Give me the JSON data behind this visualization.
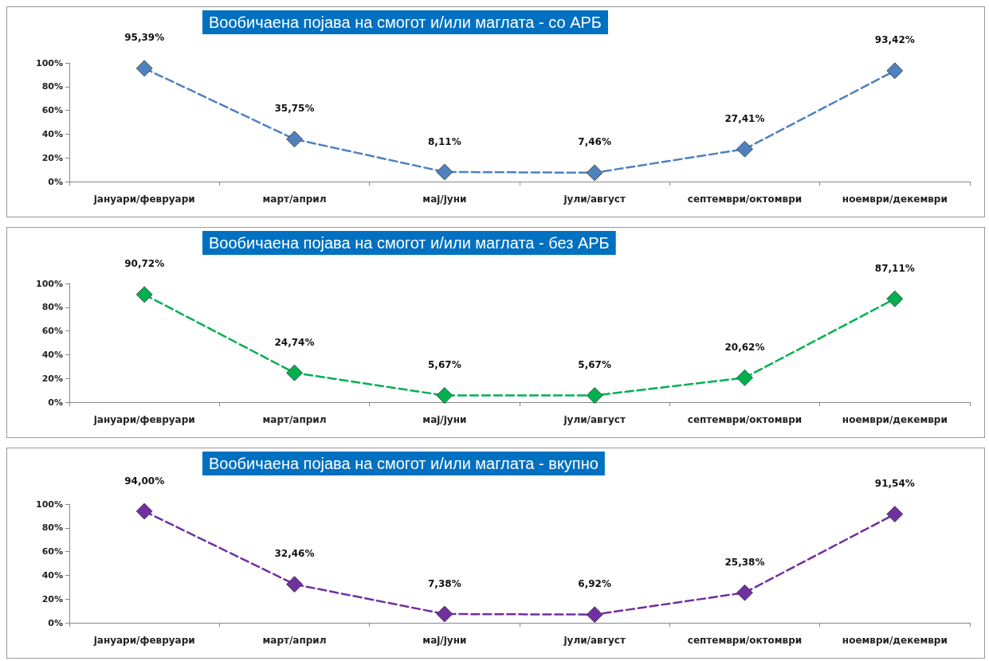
{
  "chart_data": [
    {
      "type": "line",
      "title": "Вообичаена појава на смогот и/или маглата - со АРБ",
      "categories": [
        "јануари/февруари",
        "март/април",
        "мај/јуни",
        "јули/август",
        "септември/октомври",
        "ноември/декември"
      ],
      "series": [
        {
          "color": "#4f81bd",
          "values": [
            95.39,
            35.75,
            8.11,
            7.46,
            27.41,
            93.42
          ],
          "value_labels": [
            "95,39%",
            "35,75%",
            "8,11%",
            "7,46%",
            "27,41%",
            "93,42%"
          ]
        }
      ],
      "ylim": [
        0,
        100
      ],
      "yticks": [
        {
          "value": 0,
          "label": "0%"
        },
        {
          "value": 20,
          "label": "20%"
        },
        {
          "value": 40,
          "label": "40%"
        },
        {
          "value": 60,
          "label": "60%"
        },
        {
          "value": 80,
          "label": "80%"
        },
        {
          "value": 100,
          "label": "100%"
        }
      ],
      "grid": false,
      "marker": "diamond",
      "line_style": "dashed"
    },
    {
      "type": "line",
      "title": "Вообичаена појава на смогот и/или маглата - без АРБ",
      "categories": [
        "јануари/февруари",
        "март/април",
        "мај/јуни",
        "јули/август",
        "септември/октомври",
        "ноември/декември"
      ],
      "series": [
        {
          "color": "#00b050",
          "values": [
            90.72,
            24.74,
            5.67,
            5.67,
            20.62,
            87.11
          ],
          "value_labels": [
            "90,72%",
            "24,74%",
            "5,67%",
            "5,67%",
            "20,62%",
            "87,11%"
          ]
        }
      ],
      "ylim": [
        0,
        100
      ],
      "yticks": [
        {
          "value": 0,
          "label": "0%"
        },
        {
          "value": 20,
          "label": "20%"
        },
        {
          "value": 40,
          "label": "40%"
        },
        {
          "value": 60,
          "label": "60%"
        },
        {
          "value": 80,
          "label": "80%"
        },
        {
          "value": 100,
          "label": "100%"
        }
      ],
      "grid": false,
      "marker": "diamond",
      "line_style": "dashed"
    },
    {
      "type": "line",
      "title": "Вообичаена појава на смогот и/или маглата - вкупно",
      "categories": [
        "јануари/февруари",
        "март/април",
        "мај/јуни",
        "јули/август",
        "септември/октомври",
        "ноември/декември"
      ],
      "series": [
        {
          "color": "#7030a0",
          "values": [
            94.0,
            32.46,
            7.38,
            6.92,
            25.38,
            91.54
          ],
          "value_labels": [
            "94,00%",
            "32,46%",
            "7,38%",
            "6,92%",
            "25,38%",
            "91,54%"
          ]
        }
      ],
      "ylim": [
        0,
        100
      ],
      "yticks": [
        {
          "value": 0,
          "label": "0%"
        },
        {
          "value": 20,
          "label": "20%"
        },
        {
          "value": 40,
          "label": "40%"
        },
        {
          "value": 60,
          "label": "60%"
        },
        {
          "value": 80,
          "label": "80%"
        },
        {
          "value": 100,
          "label": "100%"
        }
      ],
      "grid": false,
      "marker": "diamond",
      "line_style": "dashed"
    }
  ]
}
